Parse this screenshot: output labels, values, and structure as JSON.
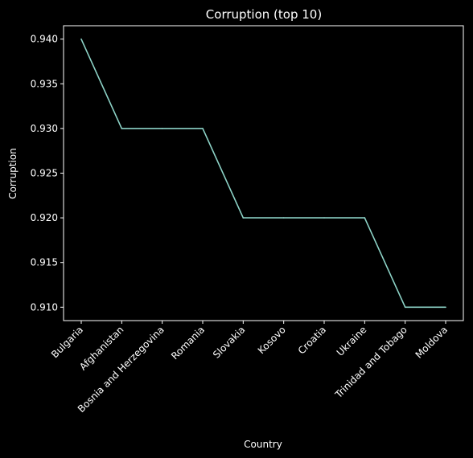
{
  "chart_data": {
    "type": "line",
    "title": "Corruption (top 10)",
    "xlabel": "Country",
    "ylabel": "Corruption",
    "categories": [
      "Bulgaria",
      "Afghanistan",
      "Bosnia and Herzegovina",
      "Romania",
      "Slovakia",
      "Kosovo",
      "Croatia",
      "Ukraine",
      "Trinidad and Tobago",
      "Moldova"
    ],
    "series": [
      {
        "values": [
          0.94,
          0.93,
          0.93,
          0.93,
          0.92,
          0.92,
          0.92,
          0.92,
          0.91,
          0.91
        ]
      }
    ],
    "yticks": [
      "0.910",
      "0.915",
      "0.920",
      "0.925",
      "0.930",
      "0.935",
      "0.940"
    ],
    "ylim": [
      0.9085,
      0.9415
    ],
    "grid": false,
    "colors": {
      "background": "#000000",
      "line": "#8dd3c7",
      "text": "#ffffff"
    }
  }
}
